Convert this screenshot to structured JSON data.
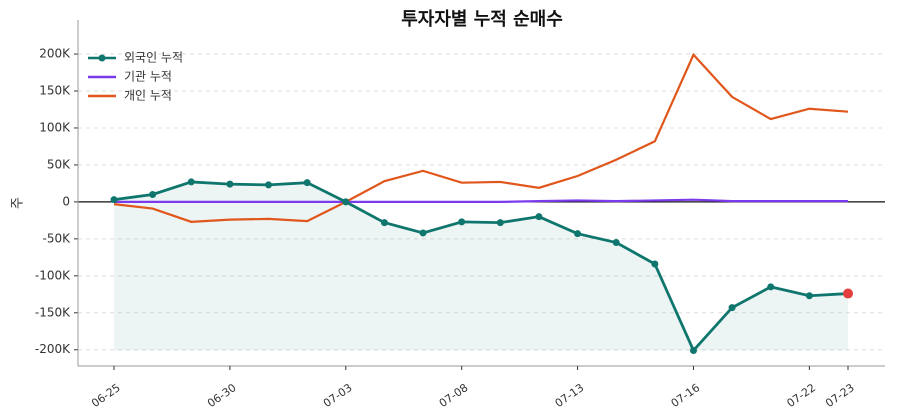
{
  "chart_data": {
    "type": "line",
    "title": "투자자별 누적 순매수",
    "ylabel": "주",
    "categories": [
      "06-25",
      null,
      null,
      "06-30",
      null,
      null,
      "07-03",
      null,
      null,
      "07-08",
      null,
      null,
      "07-13",
      null,
      null,
      "07-16",
      null,
      null,
      "07-22",
      "07-23"
    ],
    "series": [
      {
        "name": "외국인 누적",
        "color": "#0f766e",
        "values": [
          3000,
          10000,
          27000,
          24000,
          23000,
          26000,
          0,
          -28000,
          -42000,
          -27000,
          -28000,
          -20000,
          -43000,
          -55000,
          -84000,
          -201000,
          -143000,
          -115000,
          -127000,
          -124000
        ]
      },
      {
        "name": "기관 누적",
        "color": "#7c3aed",
        "values": [
          0,
          0,
          0,
          0,
          0,
          0,
          0,
          0,
          0,
          0,
          0,
          1000,
          2000,
          1000,
          2000,
          3000,
          1000,
          1000,
          1000,
          1000
        ]
      },
      {
        "name": "개인 누적",
        "color": "#e0561b",
        "values": [
          -3000,
          -9000,
          -27000,
          -24000,
          -23000,
          -26000,
          0,
          28000,
          42000,
          26000,
          27000,
          19000,
          35000,
          57000,
          82000,
          199000,
          142000,
          112000,
          126000,
          122000
        ]
      }
    ],
    "ylim": [
      -222000,
      219000
    ],
    "yticks": [
      {
        "value": -200000,
        "label": "-200K"
      },
      {
        "value": -150000,
        "label": "-150K"
      },
      {
        "value": -100000,
        "label": "-100K"
      },
      {
        "value": -50000,
        "label": "-50K"
      },
      0,
      {
        "value": 50000,
        "label": "50K"
      },
      {
        "value": 100000,
        "label": "100K"
      },
      {
        "value": 150000,
        "label": "150K"
      },
      {
        "value": 200000,
        "label": "200K"
      }
    ],
    "grid": true,
    "legend": "upper left"
  }
}
